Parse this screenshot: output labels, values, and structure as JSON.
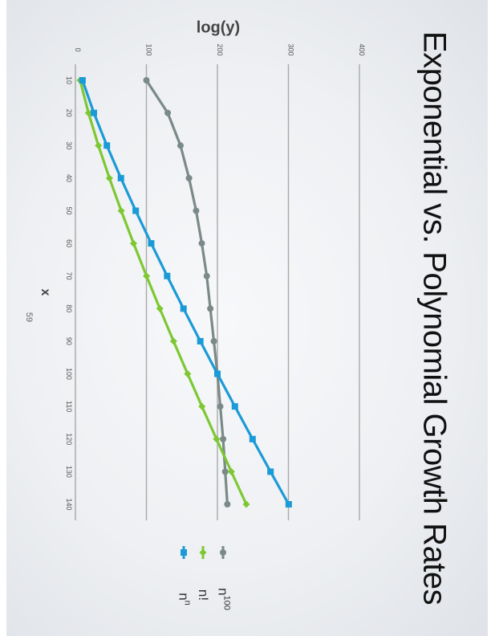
{
  "slide": {
    "title": "Exponential vs. Polynomial Growth Rates",
    "page_number": "59"
  },
  "chart_data": {
    "type": "line",
    "title": "Exponential vs. Polynomial Growth Rates",
    "xlabel": "x",
    "ylabel": "log(y)",
    "x": [
      10,
      20,
      30,
      40,
      50,
      60,
      70,
      80,
      90,
      100,
      110,
      120,
      130,
      140
    ],
    "x_ticks": [
      "10",
      "20",
      "30",
      "40",
      "50",
      "60",
      "70",
      "80",
      "90",
      "100",
      "110",
      "120",
      "130",
      "140"
    ],
    "ylim": [
      0,
      400
    ],
    "y_ticks": [
      "0",
      "100",
      "200",
      "300",
      "400"
    ],
    "grid": true,
    "legend_position": "right",
    "series": [
      {
        "name": "n100",
        "label_base": "n",
        "label_sup": "100",
        "color": "#7a8a86",
        "marker": "circle",
        "values": [
          100,
          130,
          148,
          160,
          170,
          178,
          185,
          190,
          195,
          200,
          204,
          208,
          211,
          214
        ]
      },
      {
        "name": "n!",
        "label_base": "n!",
        "label_sup": "",
        "color": "#7dc832",
        "marker": "diamond",
        "values": [
          6.6,
          18.4,
          32.4,
          47.9,
          64.5,
          81.9,
          100.1,
          118.9,
          138.2,
          158.0,
          178.2,
          198.7,
          219.6,
          240.7
        ]
      },
      {
        "name": "nn",
        "label_base": "n",
        "label_sup": "n",
        "color": "#1a9ad6",
        "marker": "square",
        "values": [
          10,
          26,
          44.3,
          64.1,
          84.9,
          106.7,
          129.2,
          152.2,
          175.9,
          200,
          224.6,
          249.5,
          274.8,
          300.4
        ]
      }
    ]
  }
}
